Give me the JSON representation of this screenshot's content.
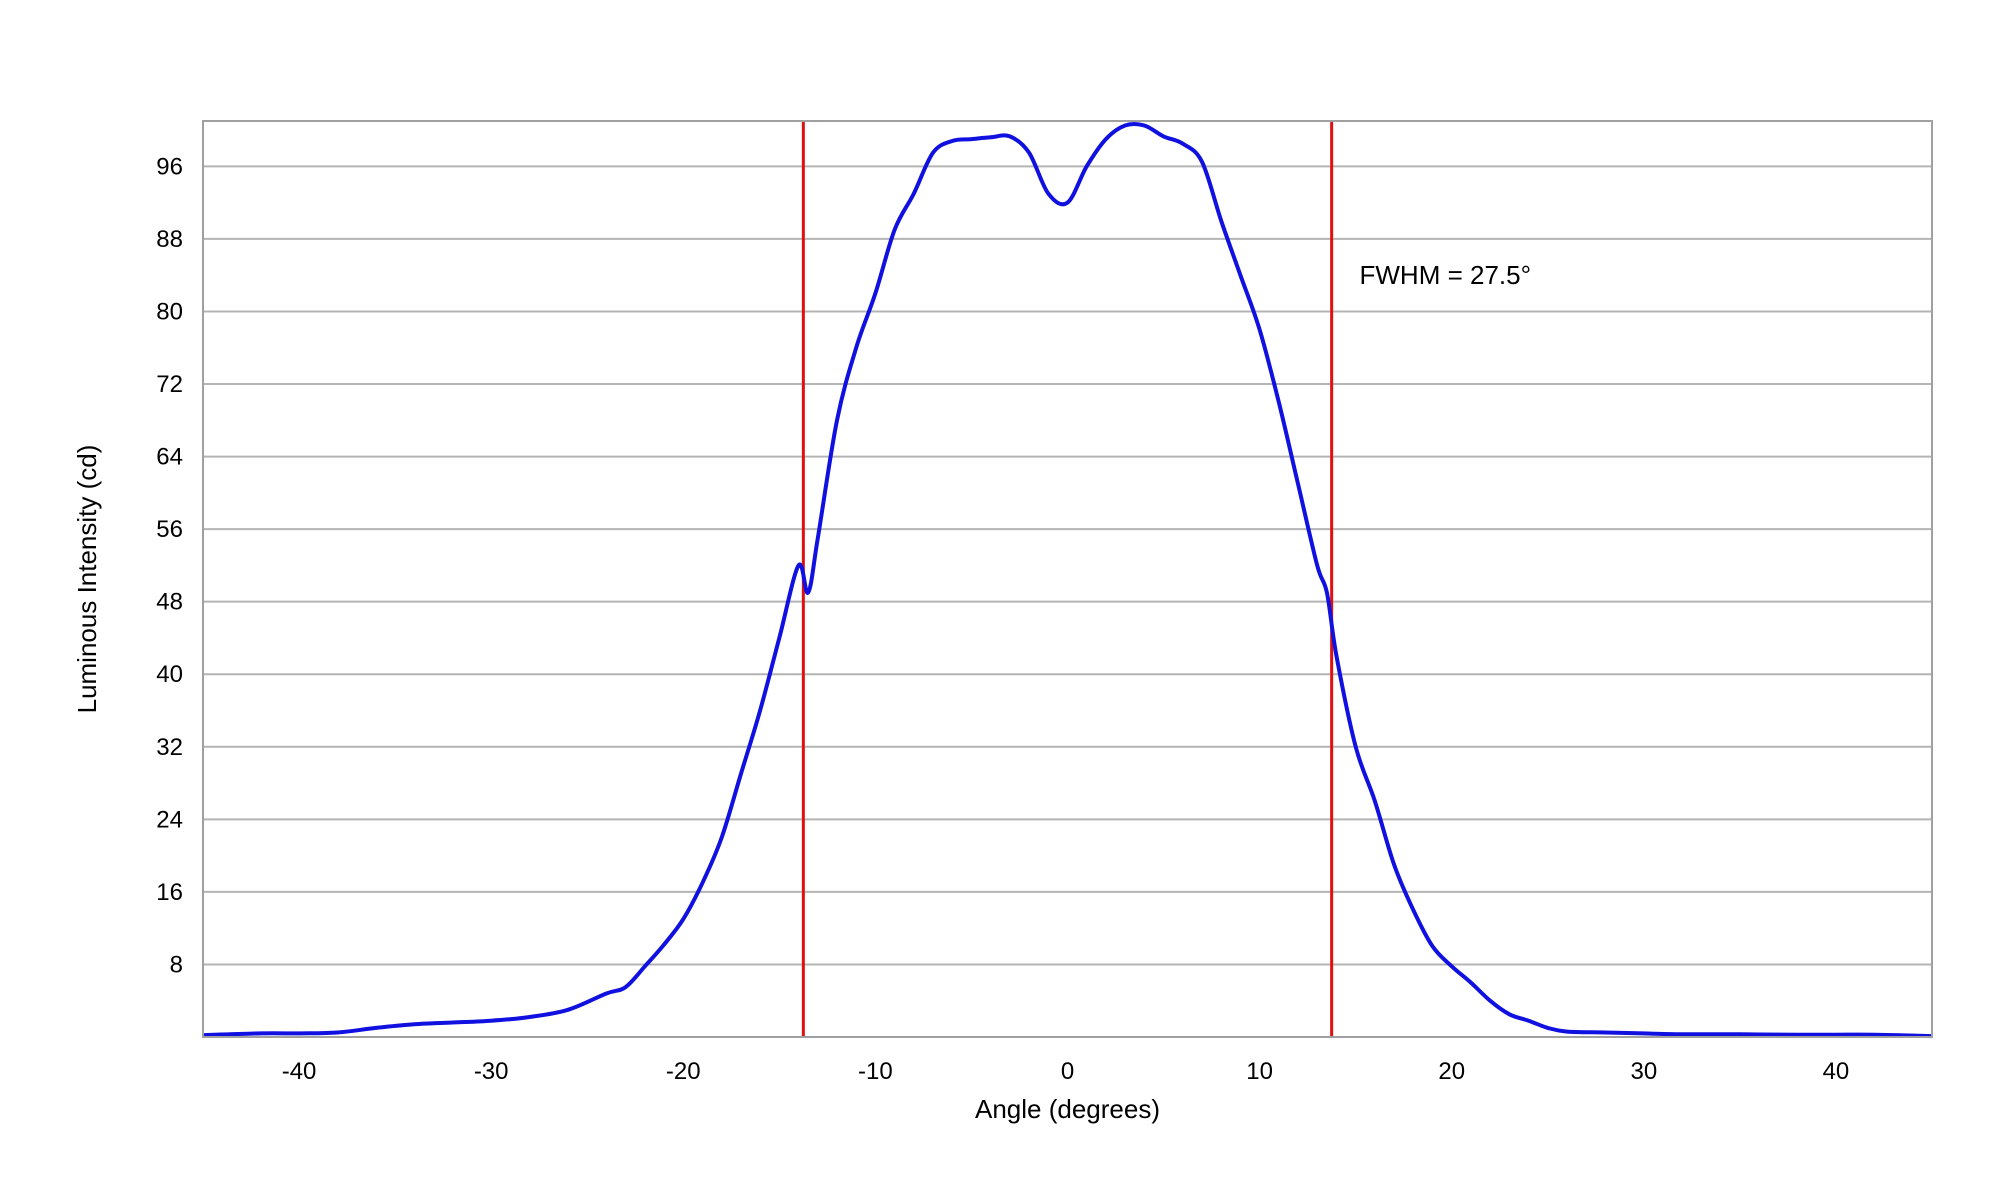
{
  "chart_data": {
    "type": "line",
    "title": "",
    "xlabel": "Angle (degrees)",
    "ylabel": "Luminous Intensity (cd)",
    "xlim": [
      -45,
      45
    ],
    "ylim": [
      0,
      101
    ],
    "x_ticks": [
      -40,
      -30,
      -20,
      -10,
      0,
      10,
      20,
      30,
      40
    ],
    "x_tick_labels": [
      "-40",
      "-30",
      "-20",
      "-10",
      "0",
      "10",
      "20",
      "30",
      "40"
    ],
    "y_ticks": [
      8,
      16,
      24,
      32,
      40,
      48,
      56,
      64,
      72,
      80,
      88,
      96
    ],
    "y_tick_labels": [
      "8",
      "16",
      "24",
      "32",
      "40",
      "48",
      "56",
      "64",
      "72",
      "80",
      "88",
      "96"
    ],
    "grid": "horizontal",
    "series": [
      {
        "color": "#1010e0",
        "x": [
          -45,
          -42,
          -40,
          -38,
          -36,
          -34,
          -32,
          -30,
          -28,
          -26,
          -24,
          -23,
          -22,
          -21,
          -20,
          -19,
          -18,
          -17,
          -16,
          -15,
          -14,
          -13.5,
          -13,
          -12,
          -11,
          -10,
          -9,
          -8,
          -7,
          -6,
          -5,
          -4,
          -3,
          -2,
          -1,
          0,
          1,
          2,
          3,
          4,
          5,
          6,
          7,
          8,
          9,
          10,
          11,
          12,
          13,
          13.5,
          14,
          15,
          16,
          17,
          18,
          19,
          20,
          21,
          22,
          23,
          24,
          25,
          26,
          28,
          30,
          32,
          35,
          38,
          40,
          42,
          45
        ],
        "y": [
          0.2,
          0.4,
          0.4,
          0.5,
          1.0,
          1.4,
          1.6,
          1.8,
          2.2,
          3.0,
          4.8,
          5.5,
          7.8,
          10.2,
          13.0,
          17.0,
          22.0,
          29.0,
          36.0,
          44.0,
          52.0,
          49.0,
          55.0,
          68.0,
          76.0,
          82.0,
          89.0,
          93.0,
          97.5,
          98.8,
          99.0,
          99.2,
          99.3,
          97.5,
          93.0,
          92.0,
          96.0,
          99.0,
          100.5,
          100.5,
          99.3,
          98.5,
          96.5,
          90.0,
          84.0,
          78.0,
          70.0,
          61.0,
          52.0,
          49.0,
          42.0,
          32.0,
          26.0,
          19.0,
          14.0,
          10.0,
          7.8,
          6.0,
          4.0,
          2.5,
          1.8,
          1.0,
          0.6,
          0.5,
          0.4,
          0.3,
          0.3,
          0.25,
          0.25,
          0.25,
          0.1
        ]
      }
    ],
    "vertical_lines": [
      {
        "x": -13.75,
        "color": "#e01010"
      },
      {
        "x": 13.75,
        "color": "#e01010"
      }
    ],
    "annotation": {
      "text": "FWHM = 27.5°",
      "x": 15.2,
      "y": 83
    }
  }
}
